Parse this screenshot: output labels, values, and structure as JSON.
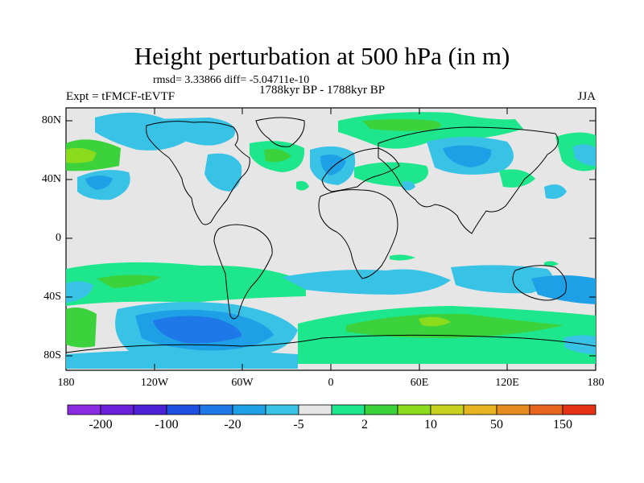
{
  "title": "Height perturbation at 500 hPa (in m)",
  "stats": "rmsd= 3.33866 diff= -5.04711e-10",
  "experiment": "Expt = tFMCF-tEVTF",
  "period": "1788kyr BP - 1788kyr BP",
  "season": "JJA",
  "lat_labels": [
    "80N",
    "40N",
    "0",
    "40S",
    "80S"
  ],
  "lon_labels": [
    "180",
    "120W",
    "60W",
    "0",
    "60E",
    "120E",
    "180"
  ],
  "colorbar": {
    "labels": [
      "-200",
      "-100",
      "-20",
      "-5",
      "2",
      "10",
      "50",
      "150"
    ],
    "colors": [
      "#8b2be2",
      "#6a1fd8",
      "#4d22d6",
      "#1f4fe0",
      "#1e78e8",
      "#1ea0e6",
      "#38c3e6",
      "#e6e6e6",
      "#1ee68c",
      "#3cd23c",
      "#8cdc1e",
      "#c8d21e",
      "#e6b41e",
      "#e68c1e",
      "#e6641e",
      "#e63214"
    ]
  },
  "icons": {
    "land": "coastline-outline"
  }
}
